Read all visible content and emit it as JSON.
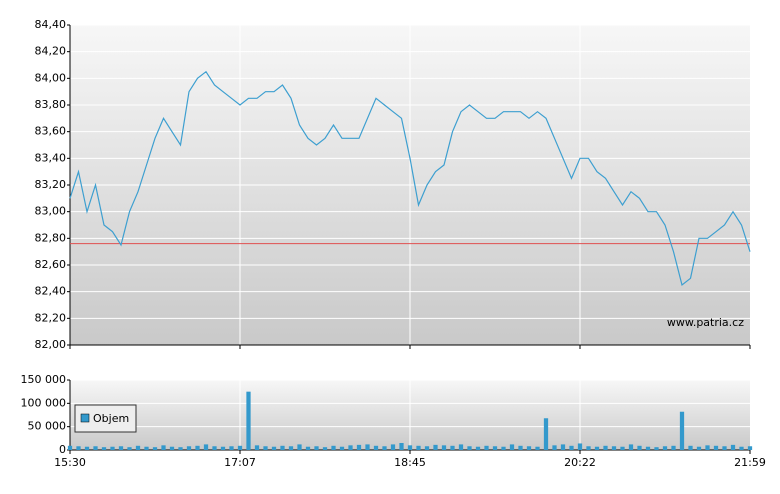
{
  "chart_data": [
    {
      "type": "line",
      "color": "#3d9fd0",
      "values": [
        83.1,
        83.3,
        83.0,
        83.2,
        82.9,
        82.85,
        82.75,
        83.0,
        83.15,
        83.35,
        83.55,
        83.7,
        83.6,
        83.5,
        83.9,
        84.0,
        84.05,
        83.95,
        83.9,
        83.85,
        83.8,
        83.85,
        83.85,
        83.9,
        83.9,
        83.95,
        83.85,
        83.65,
        83.55,
        83.5,
        83.55,
        83.65,
        83.55,
        83.55,
        83.55,
        83.7,
        83.85,
        83.8,
        83.75,
        83.7,
        83.4,
        83.05,
        83.2,
        83.3,
        83.35,
        83.6,
        83.75,
        83.8,
        83.75,
        83.7,
        83.7,
        83.75,
        83.75,
        83.75,
        83.7,
        83.75,
        83.7,
        83.55,
        83.4,
        83.25,
        83.4,
        83.4,
        83.3,
        83.25,
        83.15,
        83.05,
        83.15,
        83.1,
        83.0,
        83.0,
        82.9,
        82.7,
        82.45,
        82.5,
        82.8,
        82.8,
        82.85,
        82.9,
        83.0,
        82.9,
        82.7
      ],
      "ylim": [
        82.0,
        84.4
      ],
      "yticks": [
        {
          "value": 82.0,
          "label": "82,00"
        },
        {
          "value": 82.2,
          "label": "82,20"
        },
        {
          "value": 82.4,
          "label": "82,40"
        },
        {
          "value": 82.6,
          "label": "82,60"
        },
        {
          "value": 82.8,
          "label": "82,80"
        },
        {
          "value": 83.0,
          "label": "83,00"
        },
        {
          "value": 83.2,
          "label": "83,20"
        },
        {
          "value": 83.4,
          "label": "83,40"
        },
        {
          "value": 83.6,
          "label": "83,60"
        },
        {
          "value": 83.8,
          "label": "83,80"
        },
        {
          "value": 84.0,
          "label": "84,00"
        },
        {
          "value": 84.2,
          "label": "84,20"
        },
        {
          "value": 84.4,
          "label": "84,40"
        }
      ],
      "reference_line": {
        "value": 82.76,
        "color": "#e05050"
      },
      "annotation": "www.patria.cz",
      "grid": true
    },
    {
      "type": "bar",
      "color": "#3399cc",
      "categories": [
        "15:30",
        null,
        null,
        null,
        null,
        null,
        null,
        null,
        null,
        null,
        null,
        null,
        null,
        null,
        null,
        null,
        null,
        null,
        null,
        null,
        "17:07",
        null,
        null,
        null,
        null,
        null,
        null,
        null,
        null,
        null,
        null,
        null,
        null,
        null,
        null,
        null,
        null,
        null,
        null,
        null,
        "18:45",
        null,
        null,
        null,
        null,
        null,
        null,
        null,
        null,
        null,
        null,
        null,
        null,
        null,
        null,
        null,
        null,
        null,
        null,
        null,
        "20:22",
        null,
        null,
        null,
        null,
        null,
        null,
        null,
        null,
        null,
        null,
        null,
        null,
        null,
        null,
        null,
        null,
        null,
        null,
        null,
        "21:59"
      ],
      "series": [
        {
          "name": "Objem",
          "color": "#3399cc",
          "values": [
            9000,
            8000,
            7000,
            8000,
            6000,
            7000,
            8000,
            6000,
            9000,
            7000,
            6000,
            10000,
            7000,
            6000,
            8000,
            9000,
            12000,
            8000,
            7000,
            8000,
            9000,
            125000,
            10000,
            8000,
            7000,
            9000,
            8000,
            12000,
            7000,
            8000,
            6000,
            9000,
            7000,
            10000,
            11000,
            12000,
            9000,
            8000,
            12000,
            15000,
            10000,
            9000,
            8000,
            11000,
            10000,
            9000,
            12000,
            8000,
            7000,
            9000,
            8000,
            7000,
            12000,
            9000,
            8000,
            7000,
            68000,
            10000,
            12000,
            9000,
            14000,
            8000,
            7000,
            9000,
            8000,
            7000,
            12000,
            9000,
            7000,
            6000,
            8000,
            9000,
            82000,
            9000,
            7000,
            10000,
            9000,
            8000,
            11000,
            7000,
            8000
          ]
        }
      ],
      "ylim": [
        0,
        150000
      ],
      "yticks": [
        {
          "value": 0,
          "label": "0"
        },
        {
          "value": 50000,
          "label": "50 000"
        },
        {
          "value": 100000,
          "label": "100 000"
        },
        {
          "value": 150000,
          "label": "150 000"
        }
      ],
      "grid": true,
      "legend": "upper-left"
    }
  ]
}
